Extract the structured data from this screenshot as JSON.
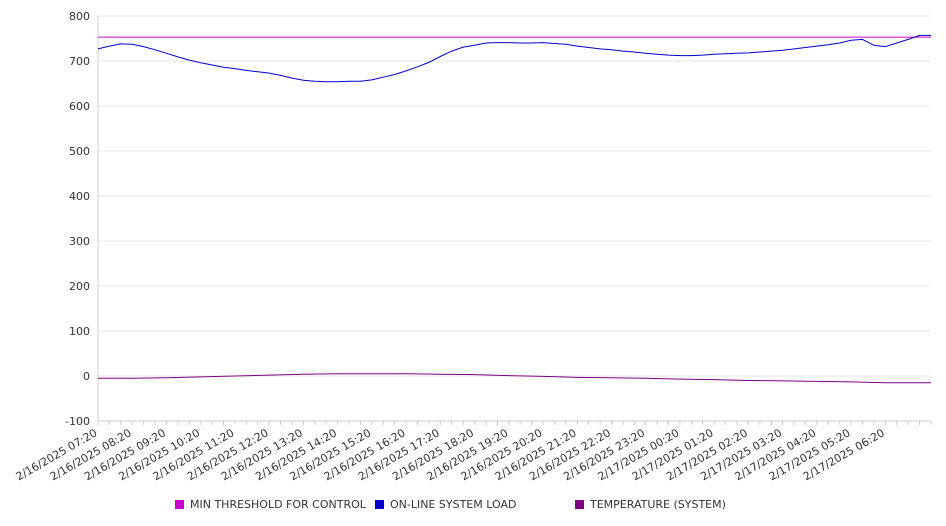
{
  "chart_data": {
    "type": "line",
    "title": "",
    "xlabel": "",
    "ylabel": "",
    "ylim": [
      -100,
      800
    ],
    "yticks": [
      -100,
      0,
      100,
      200,
      300,
      400,
      500,
      600,
      700,
      800
    ],
    "xlim": [
      "2/16/2025 07:20",
      "2/17/2025 07:40"
    ],
    "x_tick_labels": [
      "2/16/2025 07:20",
      "2/16/2025 08:20",
      "2/16/2025 09:20",
      "2/16/2025 10:20",
      "2/16/2025 11:20",
      "2/16/2025 12:20",
      "2/16/2025 13:20",
      "2/16/2025 14:20",
      "2/16/2025 15:20",
      "2/16/2025 16:20",
      "2/16/2025 17:20",
      "2/16/2025 18:20",
      "2/16/2025 19:20",
      "2/16/2025 20:20",
      "2/16/2025 21:20",
      "2/16/2025 22:20",
      "2/16/2025 23:20",
      "2/17/2025 00:20",
      "2/17/2025 01:20",
      "2/17/2025 02:20",
      "2/17/2025 03:20",
      "2/17/2025 04:20",
      "2/17/2025 05:20",
      "2/17/2025 06:20"
    ],
    "grid": true,
    "legend_position": "bottom",
    "series": [
      {
        "name": "MIN THRESHOLD FOR CONTROL",
        "color": "#cc00cc",
        "x": [
          "2/16/2025 07:20",
          "2/17/2025 07:40"
        ],
        "values": [
          753,
          753
        ]
      },
      {
        "name": "ON-LINE SYSTEM LOAD",
        "color": "#0000cc",
        "x": [
          "2/16/2025 07:20",
          "2/16/2025 07:40",
          "2/16/2025 08:00",
          "2/16/2025 08:20",
          "2/16/2025 08:40",
          "2/16/2025 09:00",
          "2/16/2025 09:20",
          "2/16/2025 09:40",
          "2/16/2025 10:00",
          "2/16/2025 10:20",
          "2/16/2025 10:40",
          "2/16/2025 11:00",
          "2/16/2025 11:20",
          "2/16/2025 11:40",
          "2/16/2025 12:00",
          "2/16/2025 12:20",
          "2/16/2025 12:40",
          "2/16/2025 13:00",
          "2/16/2025 13:20",
          "2/16/2025 13:40",
          "2/16/2025 14:00",
          "2/16/2025 14:20",
          "2/16/2025 14:40",
          "2/16/2025 15:00",
          "2/16/2025 15:20",
          "2/16/2025 15:40",
          "2/16/2025 16:00",
          "2/16/2025 16:20",
          "2/16/2025 16:40",
          "2/16/2025 17:00",
          "2/16/2025 17:20",
          "2/16/2025 17:40",
          "2/16/2025 18:00",
          "2/16/2025 18:20",
          "2/16/2025 18:40",
          "2/16/2025 19:00",
          "2/16/2025 19:20",
          "2/16/2025 19:40",
          "2/16/2025 20:00",
          "2/16/2025 20:20",
          "2/16/2025 20:40",
          "2/16/2025 21:00",
          "2/16/2025 21:20",
          "2/16/2025 21:40",
          "2/16/2025 22:00",
          "2/16/2025 22:20",
          "2/16/2025 22:40",
          "2/16/2025 23:00",
          "2/16/2025 23:20",
          "2/16/2025 23:40",
          "2/17/2025 00:00",
          "2/17/2025 00:20",
          "2/17/2025 00:40",
          "2/17/2025 01:00",
          "2/17/2025 01:20",
          "2/17/2025 01:40",
          "2/17/2025 02:00",
          "2/17/2025 02:20",
          "2/17/2025 02:40",
          "2/17/2025 03:00",
          "2/17/2025 03:20",
          "2/17/2025 03:40",
          "2/17/2025 04:00",
          "2/17/2025 04:20",
          "2/17/2025 04:40",
          "2/17/2025 05:00",
          "2/17/2025 05:20",
          "2/17/2025 05:40",
          "2/17/2025 06:00",
          "2/17/2025 06:20",
          "2/17/2025 06:40",
          "2/17/2025 07:00",
          "2/17/2025 07:20",
          "2/17/2025 07:40"
        ],
        "values": [
          727,
          733,
          738,
          737,
          732,
          725,
          717,
          709,
          702,
          696,
          691,
          686,
          683,
          679,
          676,
          673,
          668,
          662,
          657,
          655,
          654,
          654,
          655,
          655,
          658,
          664,
          670,
          678,
          687,
          697,
          710,
          722,
          731,
          735,
          740,
          741,
          741,
          740,
          740,
          741,
          739,
          737,
          733,
          730,
          727,
          725,
          722,
          720,
          717,
          715,
          713,
          712,
          712,
          713,
          715,
          716,
          717,
          718,
          720,
          722,
          724,
          727,
          730,
          733,
          736,
          740,
          746,
          748,
          735,
          732,
          740,
          748,
          757,
          757
        ]
      },
      {
        "name": "TEMPERATURE (SYSTEM)",
        "color": "#800080",
        "x": [
          "2/16/2025 07:20",
          "2/16/2025 08:20",
          "2/16/2025 09:20",
          "2/16/2025 10:20",
          "2/16/2025 11:20",
          "2/16/2025 12:20",
          "2/16/2025 13:20",
          "2/16/2025 14:20",
          "2/16/2025 15:20",
          "2/16/2025 16:20",
          "2/16/2025 17:20",
          "2/16/2025 18:20",
          "2/16/2025 19:20",
          "2/16/2025 20:20",
          "2/16/2025 21:20",
          "2/16/2025 22:20",
          "2/16/2025 23:20",
          "2/17/2025 00:20",
          "2/17/2025 01:20",
          "2/17/2025 02:20",
          "2/17/2025 03:20",
          "2/17/2025 04:20",
          "2/17/2025 05:20",
          "2/17/2025 06:20",
          "2/17/2025 07:40"
        ],
        "values": [
          -5,
          -5,
          -4,
          -2,
          0,
          2,
          4,
          5,
          5,
          5,
          4,
          3,
          1,
          -1,
          -3,
          -4,
          -5,
          -7,
          -8,
          -10,
          -11,
          -12,
          -13,
          -15,
          -15
        ]
      }
    ]
  }
}
